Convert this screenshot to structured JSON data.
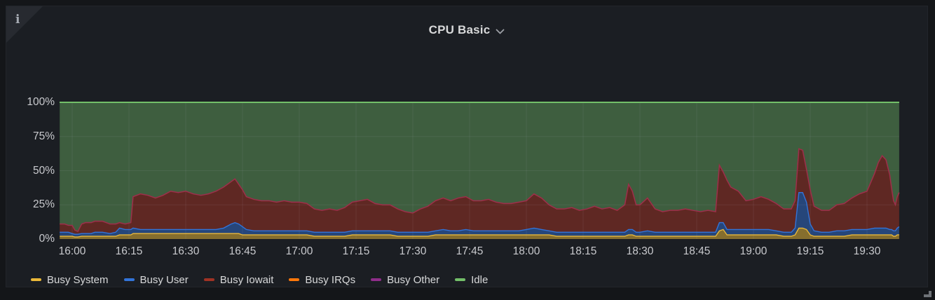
{
  "panel": {
    "title": "CPU Basic",
    "info_icon": "i"
  },
  "chart_data": {
    "type": "area",
    "stacked": true,
    "title": "CPU Basic",
    "unit": "percent",
    "ylim": [
      0,
      100
    ],
    "grid": true,
    "legend_position": "bottom",
    "y_ticks": [
      {
        "label": "0%",
        "v": 0
      },
      {
        "label": "25%",
        "v": 25
      },
      {
        "label": "50%",
        "v": 50
      },
      {
        "label": "75%",
        "v": 75
      },
      {
        "label": "100%",
        "v": 100
      }
    ],
    "x_ticks": [
      {
        "label": "16:00",
        "m": 0
      },
      {
        "label": "16:15",
        "m": 15
      },
      {
        "label": "16:30",
        "m": 30
      },
      {
        "label": "16:45",
        "m": 45
      },
      {
        "label": "17:00",
        "m": 60
      },
      {
        "label": "17:15",
        "m": 75
      },
      {
        "label": "17:30",
        "m": 90
      },
      {
        "label": "17:45",
        "m": 105
      },
      {
        "label": "18:00",
        "m": 120
      },
      {
        "label": "18:15",
        "m": 135
      },
      {
        "label": "18:30",
        "m": 150
      },
      {
        "label": "18:45",
        "m": 165
      },
      {
        "label": "19:00",
        "m": 180
      },
      {
        "label": "19:15",
        "m": 195
      },
      {
        "label": "19:30",
        "m": 210
      }
    ],
    "series": [
      {
        "name": "Busy System",
        "color": "#EAB839"
      },
      {
        "name": "Busy User",
        "color": "#3274D9"
      },
      {
        "name": "Busy Iowait",
        "color": "#A03224"
      },
      {
        "name": "Busy IRQs",
        "color": "#FF780A"
      },
      {
        "name": "Busy Other",
        "color": "#8F2D8A"
      },
      {
        "name": "Idle",
        "color": "#73BF69"
      }
    ],
    "points_note": "Each point: [minutes after 16:00, Busy System %, Busy User %, Busy Iowait %]. Busy IRQs ~0, Busy Other ~0, Idle = remainder to 100%.",
    "points": [
      [
        -3.3,
        2,
        3,
        6
      ],
      [
        -2,
        2,
        3,
        6
      ],
      [
        -1,
        2,
        3,
        5
      ],
      [
        0,
        2,
        2,
        6
      ],
      [
        0.7,
        1.5,
        2,
        3
      ],
      [
        1.5,
        1.5,
        2,
        2
      ],
      [
        2.5,
        2,
        2,
        7
      ],
      [
        3.5,
        2,
        2,
        8
      ],
      [
        5,
        2,
        2,
        8
      ],
      [
        6,
        2,
        3,
        8
      ],
      [
        8,
        2,
        3,
        8
      ],
      [
        10,
        2,
        2,
        7
      ],
      [
        11.5,
        2,
        3,
        6
      ],
      [
        12.5,
        3,
        5,
        4
      ],
      [
        14,
        3,
        4,
        4
      ],
      [
        15.5,
        3,
        4,
        5
      ],
      [
        16.1,
        4,
        4,
        23
      ],
      [
        18,
        4,
        3,
        26
      ],
      [
        20,
        4,
        3,
        25
      ],
      [
        22,
        4,
        3,
        23
      ],
      [
        24,
        4,
        3,
        25
      ],
      [
        26,
        4,
        3,
        28
      ],
      [
        28,
        4,
        3,
        27
      ],
      [
        30,
        4,
        3,
        28
      ],
      [
        32,
        4,
        3,
        26
      ],
      [
        34,
        4,
        3,
        25
      ],
      [
        36,
        4,
        3,
        26
      ],
      [
        38,
        4,
        3,
        28
      ],
      [
        40,
        4,
        4,
        30
      ],
      [
        42,
        4,
        7,
        31
      ],
      [
        43,
        4,
        8,
        32
      ],
      [
        44,
        4,
        7,
        29
      ],
      [
        45,
        3,
        6,
        27
      ],
      [
        46,
        3,
        4,
        24
      ],
      [
        48,
        3,
        3,
        23
      ],
      [
        50,
        3,
        3,
        22
      ],
      [
        52,
        3,
        3,
        22
      ],
      [
        54,
        3,
        3,
        21
      ],
      [
        56,
        3,
        3,
        22
      ],
      [
        58,
        3,
        3,
        21
      ],
      [
        60,
        3,
        3,
        21
      ],
      [
        62,
        3,
        3,
        20
      ],
      [
        64,
        2,
        3,
        17
      ],
      [
        66,
        2,
        3,
        16
      ],
      [
        68,
        2,
        3,
        17
      ],
      [
        70,
        2,
        3,
        16
      ],
      [
        72,
        2,
        3,
        18
      ],
      [
        74,
        3,
        3,
        21
      ],
      [
        76,
        3,
        3,
        22
      ],
      [
        78,
        3,
        3,
        23
      ],
      [
        80,
        3,
        3,
        20
      ],
      [
        82,
        3,
        3,
        19
      ],
      [
        84,
        3,
        3,
        19
      ],
      [
        86,
        2,
        3,
        17
      ],
      [
        88,
        2,
        3,
        15
      ],
      [
        90,
        2,
        3,
        14
      ],
      [
        92,
        2,
        3,
        17
      ],
      [
        94,
        2,
        3,
        19
      ],
      [
        96,
        3,
        3,
        22
      ],
      [
        98,
        3,
        4,
        23
      ],
      [
        100,
        3,
        3,
        22
      ],
      [
        102,
        3,
        3,
        24
      ],
      [
        104,
        3,
        4,
        24
      ],
      [
        106,
        3,
        3,
        22
      ],
      [
        108,
        3,
        3,
        22
      ],
      [
        110,
        3,
        3,
        23
      ],
      [
        112,
        3,
        3,
        21
      ],
      [
        114,
        3,
        3,
        20
      ],
      [
        116,
        3,
        3,
        20
      ],
      [
        118,
        3,
        3,
        21
      ],
      [
        120,
        3,
        4,
        21
      ],
      [
        122,
        3,
        5,
        25
      ],
      [
        124,
        3,
        4,
        23
      ],
      [
        126,
        3,
        3,
        19
      ],
      [
        128,
        2,
        3,
        17
      ],
      [
        130,
        2,
        3,
        17
      ],
      [
        132,
        2,
        3,
        18
      ],
      [
        134,
        2,
        3,
        16
      ],
      [
        136,
        2,
        3,
        17
      ],
      [
        138,
        2,
        3,
        19
      ],
      [
        140,
        2,
        3,
        17
      ],
      [
        142,
        2,
        3,
        18
      ],
      [
        144,
        2,
        3,
        16
      ],
      [
        146,
        2,
        3,
        20
      ],
      [
        147,
        3,
        4,
        33
      ],
      [
        148,
        3,
        4,
        28
      ],
      [
        149,
        2,
        3,
        20
      ],
      [
        150,
        2,
        3,
        20
      ],
      [
        152,
        2,
        4,
        24
      ],
      [
        154,
        2,
        3,
        17
      ],
      [
        156,
        2,
        3,
        15
      ],
      [
        158,
        2,
        3,
        16
      ],
      [
        160,
        2,
        3,
        16
      ],
      [
        162,
        2,
        3,
        17
      ],
      [
        164,
        2,
        3,
        16
      ],
      [
        166,
        2,
        3,
        15
      ],
      [
        168,
        2,
        3,
        16
      ],
      [
        170,
        2,
        3,
        15
      ],
      [
        171,
        6,
        6,
        42
      ],
      [
        172,
        7,
        5,
        37
      ],
      [
        173,
        3,
        4,
        36
      ],
      [
        174,
        3,
        4,
        31
      ],
      [
        176,
        3,
        4,
        28
      ],
      [
        178,
        3,
        4,
        21
      ],
      [
        180,
        3,
        4,
        22
      ],
      [
        182,
        3,
        4,
        24
      ],
      [
        184,
        3,
        4,
        22
      ],
      [
        186,
        3,
        3,
        20
      ],
      [
        188,
        2,
        3,
        17
      ],
      [
        190,
        2,
        3,
        17
      ],
      [
        191,
        3,
        5,
        20
      ],
      [
        192,
        8,
        26,
        32
      ],
      [
        193,
        8,
        26,
        31
      ],
      [
        194,
        7,
        20,
        24
      ],
      [
        195,
        3,
        8,
        25
      ],
      [
        196,
        2,
        4,
        18
      ],
      [
        198,
        2,
        3,
        16
      ],
      [
        200,
        2,
        3,
        16
      ],
      [
        202,
        2,
        4,
        19
      ],
      [
        204,
        2,
        4,
        20
      ],
      [
        206,
        3,
        4,
        23
      ],
      [
        208,
        3,
        4,
        26
      ],
      [
        210,
        3,
        4,
        28
      ],
      [
        212,
        3,
        5,
        40
      ],
      [
        213,
        3,
        5,
        48
      ],
      [
        214,
        3,
        5,
        53
      ],
      [
        215,
        3,
        5,
        50
      ],
      [
        216,
        3,
        4,
        40
      ],
      [
        216.5,
        3,
        4,
        30
      ],
      [
        217,
        2,
        4,
        22
      ],
      [
        217.5,
        2,
        4,
        19
      ],
      [
        218,
        3,
        5,
        23
      ],
      [
        218.5,
        3,
        6,
        25
      ]
    ]
  }
}
